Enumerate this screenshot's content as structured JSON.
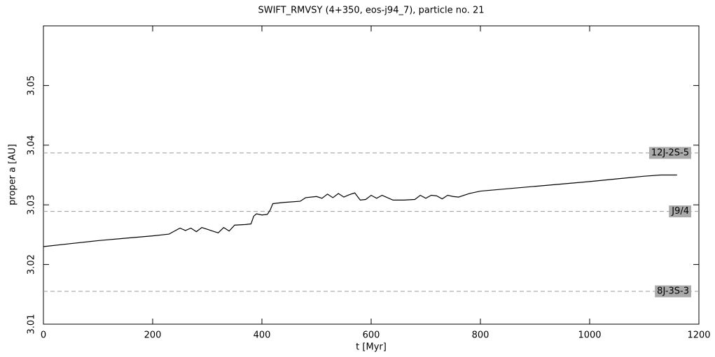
{
  "chart_data": {
    "type": "line",
    "title": "SWIFT_RMVSY (4+350, eos-j94_7), particle no. 21",
    "x_label": "t [Myr]",
    "y_label": "proper a [AU]",
    "xlim": [
      0,
      1200
    ],
    "ylim": [
      3.01,
      3.06
    ],
    "xticks": [
      0,
      200,
      400,
      600,
      800,
      1000,
      1200
    ],
    "yticks": [
      3.01,
      3.02,
      3.03,
      3.04,
      3.05
    ],
    "resonances": [
      {
        "label": "12J-2S-5",
        "value": 3.0387
      },
      {
        "label": "J9/4",
        "value": 3.0289
      },
      {
        "label": "8J-3S-3",
        "value": 3.0155
      }
    ],
    "series": [
      {
        "name": "proper a",
        "color": "#000000",
        "x": [
          0,
          50,
          100,
          150,
          200,
          230,
          240,
          250,
          260,
          270,
          280,
          290,
          300,
          310,
          320,
          330,
          340,
          350,
          370,
          380,
          385,
          390,
          400,
          410,
          415,
          420,
          440,
          470,
          480,
          500,
          510,
          520,
          530,
          540,
          550,
          560,
          570,
          580,
          590,
          600,
          610,
          620,
          640,
          660,
          680,
          690,
          700,
          710,
          720,
          730,
          740,
          750,
          760,
          780,
          800,
          900,
          1000,
          1100,
          1130,
          1160
        ],
        "values": [
          3.023,
          3.0235,
          3.024,
          3.0244,
          3.0248,
          3.0251,
          3.0256,
          3.0261,
          3.0257,
          3.0261,
          3.0255,
          3.0262,
          3.0259,
          3.0256,
          3.0253,
          3.0262,
          3.0256,
          3.0266,
          3.0267,
          3.0268,
          3.0281,
          3.0285,
          3.0283,
          3.0284,
          3.0291,
          3.0302,
          3.0304,
          3.0306,
          3.0312,
          3.0314,
          3.0311,
          3.0318,
          3.0312,
          3.0319,
          3.0313,
          3.0317,
          3.032,
          3.0308,
          3.0309,
          3.0316,
          3.0311,
          3.0316,
          3.0308,
          3.0308,
          3.0309,
          3.0316,
          3.0311,
          3.0316,
          3.0315,
          3.031,
          3.0316,
          3.0314,
          3.0313,
          3.0319,
          3.0323,
          3.0331,
          3.0339,
          3.0348,
          3.035,
          3.035
        ]
      }
    ]
  }
}
